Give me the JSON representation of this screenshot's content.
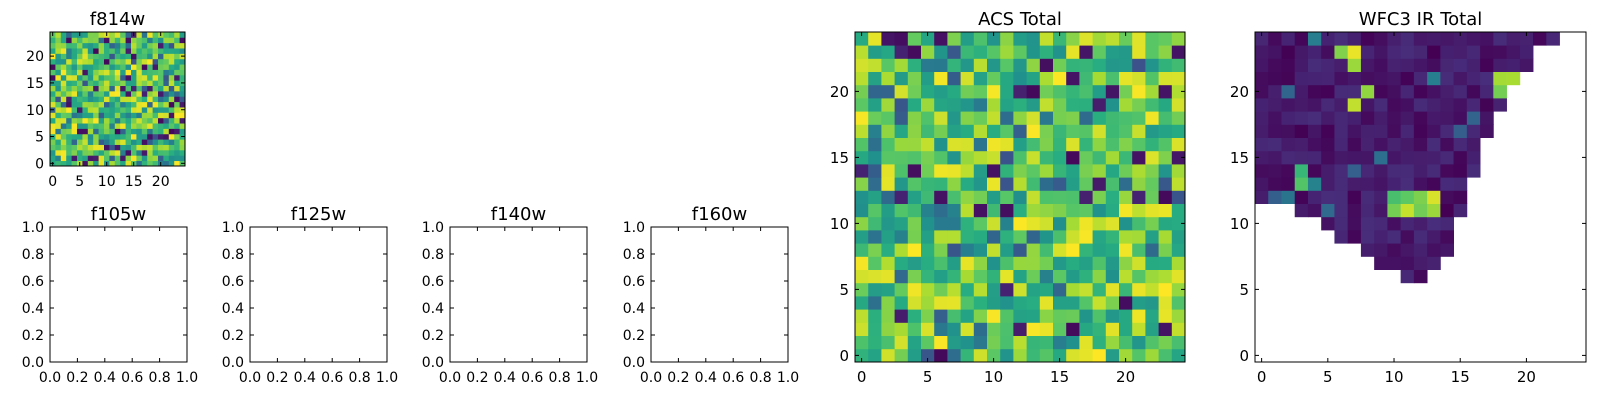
{
  "chart_data": [
    {
      "type": "heatmap",
      "title": "f814w",
      "xlim": [
        -0.5,
        24.5
      ],
      "ylim": [
        -0.5,
        24.5
      ],
      "xticks": [
        0,
        5,
        10,
        15,
        20
      ],
      "yticks": [
        0,
        5,
        10,
        15,
        20
      ],
      "xtick_labels": [
        "0",
        "5",
        "10",
        "15",
        "20"
      ],
      "ytick_labels": [
        "0",
        "5",
        "10",
        "15",
        "20"
      ],
      "colormap": "viridis",
      "grid": "random-noise 25x25",
      "empty": false
    },
    {
      "type": "heatmap",
      "title": "f105w",
      "xlim": [
        0,
        1
      ],
      "ylim": [
        0,
        1
      ],
      "xticks": [
        0,
        0.2,
        0.4,
        0.6,
        0.8,
        1.0
      ],
      "yticks": [
        0,
        0.2,
        0.4,
        0.6,
        0.8,
        1.0
      ],
      "xtick_labels": [
        "0.0",
        "0.2",
        "0.4",
        "0.6",
        "0.8",
        "1.0"
      ],
      "ytick_labels": [
        "0.0",
        "0.2",
        "0.4",
        "0.6",
        "0.8",
        "1.0"
      ],
      "empty": true
    },
    {
      "type": "heatmap",
      "title": "f125w",
      "xlim": [
        0,
        1
      ],
      "ylim": [
        0,
        1
      ],
      "xticks": [
        0,
        0.2,
        0.4,
        0.6,
        0.8,
        1.0
      ],
      "yticks": [
        0,
        0.2,
        0.4,
        0.6,
        0.8,
        1.0
      ],
      "xtick_labels": [
        "0.0",
        "0.2",
        "0.4",
        "0.6",
        "0.8",
        "1.0"
      ],
      "ytick_labels": [
        "0.0",
        "0.2",
        "0.4",
        "0.6",
        "0.8",
        "1.0"
      ],
      "empty": true
    },
    {
      "type": "heatmap",
      "title": "f140w",
      "xlim": [
        0,
        1
      ],
      "ylim": [
        0,
        1
      ],
      "xticks": [
        0,
        0.2,
        0.4,
        0.6,
        0.8,
        1.0
      ],
      "yticks": [
        0,
        0.2,
        0.4,
        0.6,
        0.8,
        1.0
      ],
      "xtick_labels": [
        "0.0",
        "0.2",
        "0.4",
        "0.6",
        "0.8",
        "1.0"
      ],
      "ytick_labels": [
        "0.0",
        "0.2",
        "0.4",
        "0.6",
        "0.8",
        "1.0"
      ],
      "empty": true
    },
    {
      "type": "heatmap",
      "title": "f160w",
      "xlim": [
        0,
        1
      ],
      "ylim": [
        0,
        1
      ],
      "xticks": [
        0,
        0.2,
        0.4,
        0.6,
        0.8,
        1.0
      ],
      "yticks": [
        0,
        0.2,
        0.4,
        0.6,
        0.8,
        1.0
      ],
      "xtick_labels": [
        "0.0",
        "0.2",
        "0.4",
        "0.6",
        "0.8",
        "1.0"
      ],
      "ytick_labels": [
        "0.0",
        "0.2",
        "0.4",
        "0.6",
        "0.8",
        "1.0"
      ],
      "empty": true
    },
    {
      "type": "heatmap",
      "title": "ACS Total",
      "xlim": [
        -0.5,
        24.5
      ],
      "ylim": [
        -0.5,
        24.5
      ],
      "xticks": [
        0,
        5,
        10,
        15,
        20
      ],
      "yticks": [
        0,
        5,
        10,
        15,
        20
      ],
      "xtick_labels": [
        "0",
        "5",
        "10",
        "15",
        "20"
      ],
      "ytick_labels": [
        "0",
        "5",
        "10",
        "15",
        "20"
      ],
      "colormap": "viridis",
      "grid": "random-noise 25x25",
      "empty": false
    },
    {
      "type": "heatmap",
      "title": "WFC3 IR Total",
      "xlim": [
        -0.5,
        24.5
      ],
      "ylim": [
        -0.5,
        24.5
      ],
      "xticks": [
        0,
        5,
        10,
        15,
        20
      ],
      "yticks": [
        0,
        5,
        10,
        15,
        20
      ],
      "xtick_labels": [
        "0",
        "5",
        "10",
        "15",
        "20"
      ],
      "ytick_labels": [
        "0",
        "5",
        "10",
        "15",
        "20"
      ],
      "colormap": "viridis",
      "grid": "mostly low values, triangular footprint; upper-right and lower region masked",
      "footprint_row_extent": [
        {
          "row": 24,
          "x_min": 0,
          "x_max": 22
        },
        {
          "row": 23,
          "x_min": 0,
          "x_max": 20
        },
        {
          "row": 22,
          "x_min": 0,
          "x_max": 20
        },
        {
          "row": 21,
          "x_min": 0,
          "x_max": 19
        },
        {
          "row": 20,
          "x_min": 0,
          "x_max": 18
        },
        {
          "row": 19,
          "x_min": 0,
          "x_max": 18
        },
        {
          "row": 18,
          "x_min": 0,
          "x_max": 17
        },
        {
          "row": 17,
          "x_min": 0,
          "x_max": 17
        },
        {
          "row": 16,
          "x_min": 0,
          "x_max": 16
        },
        {
          "row": 15,
          "x_min": 0,
          "x_max": 16
        },
        {
          "row": 14,
          "x_min": 0,
          "x_max": 16
        },
        {
          "row": 13,
          "x_min": 0,
          "x_max": 15
        },
        {
          "row": 12,
          "x_min": 0,
          "x_max": 15
        },
        {
          "row": 11,
          "x_min": 3,
          "x_max": 15
        },
        {
          "row": 10,
          "x_min": 5,
          "x_max": 14
        },
        {
          "row": 9,
          "x_min": 6,
          "x_max": 14
        },
        {
          "row": 8,
          "x_min": 8,
          "x_max": 14
        },
        {
          "row": 7,
          "x_min": 9,
          "x_max": 13
        },
        {
          "row": 6,
          "x_min": 11,
          "x_max": 12
        }
      ],
      "bright_pixels": [
        {
          "x": 6,
          "y": 23
        },
        {
          "x": 7,
          "y": 23
        },
        {
          "x": 7,
          "y": 22
        },
        {
          "x": 8,
          "y": 20
        },
        {
          "x": 7,
          "y": 19
        },
        {
          "x": 18,
          "y": 21
        },
        {
          "x": 19,
          "y": 21
        },
        {
          "x": 18,
          "y": 20
        },
        {
          "x": 3,
          "y": 14
        },
        {
          "x": 3,
          "y": 13
        },
        {
          "x": 10,
          "y": 12
        },
        {
          "x": 11,
          "y": 12
        },
        {
          "x": 12,
          "y": 12
        },
        {
          "x": 13,
          "y": 12
        },
        {
          "x": 10,
          "y": 11
        },
        {
          "x": 11,
          "y": 11
        },
        {
          "x": 12,
          "y": 11
        },
        {
          "x": 13,
          "y": 11
        }
      ],
      "empty": false
    }
  ]
}
